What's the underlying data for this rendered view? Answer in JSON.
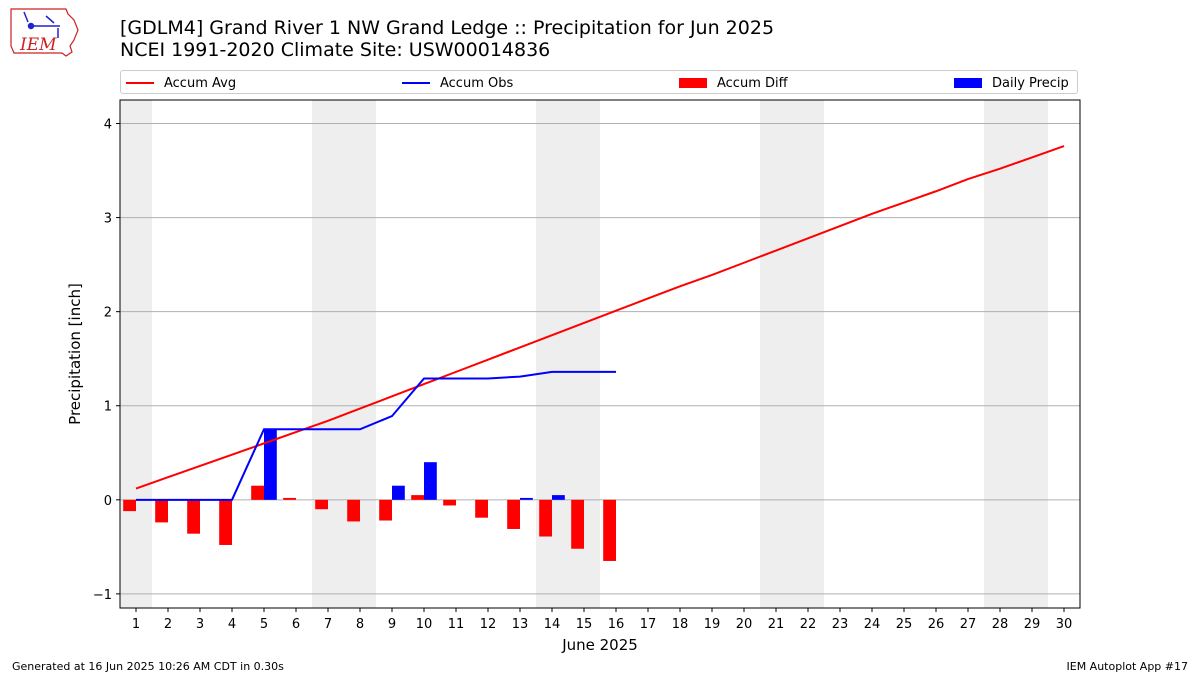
{
  "header": {
    "title_line1": "[GDLM4] Grand River 1 NW Grand Ledge :: Precipitation for Jun 2025",
    "title_line2": "NCEI 1991-2020 Climate Site: USW00014836",
    "logo_text": "IEM"
  },
  "footer": {
    "generated": "Generated at 16 Jun 2025 10:26 AM CDT in 0.30s",
    "app": "IEM Autoplot App #17"
  },
  "colors": {
    "avg": "#ff0000",
    "obs": "#0000ff",
    "diff": "#ff0000",
    "daily": "#0000ff",
    "weekend_band": "#eeeeee",
    "grid": "#b0b0b0"
  },
  "chart_data": {
    "type": "bar+line",
    "xlabel": "June 2025",
    "ylabel": "Precipitation [inch]",
    "xlim": [
      0.5,
      30.5
    ],
    "ylim": [
      -1.15,
      4.25
    ],
    "yticks": [
      -1,
      0,
      1,
      2,
      3,
      4
    ],
    "days": [
      1,
      2,
      3,
      4,
      5,
      6,
      7,
      8,
      9,
      10,
      11,
      12,
      13,
      14,
      15,
      16,
      17,
      18,
      19,
      20,
      21,
      22,
      23,
      24,
      25,
      26,
      27,
      28,
      29,
      30
    ],
    "weekend_days": [
      1,
      7,
      8,
      14,
      15,
      21,
      22,
      28,
      29
    ],
    "legend": {
      "avg": "Accum Avg",
      "obs": "Accum Obs",
      "diff": "Accum Diff",
      "daily": "Daily Precip"
    },
    "accum_avg": [
      0.12,
      0.24,
      0.36,
      0.48,
      0.6,
      0.72,
      0.84,
      0.97,
      1.1,
      1.23,
      1.36,
      1.49,
      1.62,
      1.75,
      1.88,
      2.01,
      2.14,
      2.27,
      2.39,
      2.52,
      2.65,
      2.78,
      2.91,
      3.04,
      3.16,
      3.28,
      3.41,
      3.52,
      3.64,
      3.76
    ],
    "accum_obs": [
      0.0,
      0.0,
      0.0,
      0.0,
      0.75,
      0.75,
      0.75,
      0.75,
      0.89,
      1.29,
      1.29,
      1.29,
      1.31,
      1.36,
      1.36,
      1.36
    ],
    "accum_diff": [
      -0.12,
      -0.24,
      -0.36,
      -0.48,
      0.15,
      0.02,
      -0.1,
      -0.23,
      -0.22,
      0.05,
      -0.06,
      -0.19,
      -0.31,
      -0.39,
      -0.52,
      -0.65
    ],
    "daily_precip": [
      0.0,
      0.0,
      0.0,
      0.0,
      0.75,
      0.0,
      0.0,
      0.0,
      0.15,
      0.4,
      0.0,
      0.0,
      0.02,
      0.05,
      0.0,
      0.0
    ]
  }
}
